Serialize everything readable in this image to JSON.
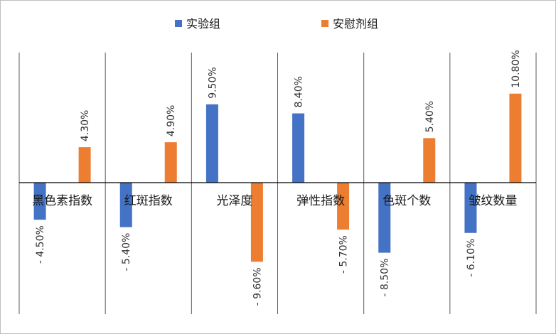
{
  "chart_data": {
    "type": "bar",
    "categories": [
      "黑色素指数",
      "红斑指数",
      "光泽度",
      "弹性指数",
      "色斑个数",
      "皱纹数量"
    ],
    "series": [
      {
        "name": "实验组",
        "color": "#4472c4",
        "values": [
          -4.5,
          -5.4,
          9.5,
          8.4,
          -8.5,
          -6.1
        ],
        "labels": [
          "- 4.50%",
          "- 5.40%",
          "9.50%",
          "8.40%",
          "- 8.50%",
          "- 6.10%"
        ]
      },
      {
        "name": "安慰剂组",
        "color": "#ed7d31",
        "values": [
          4.3,
          4.9,
          -9.6,
          -5.7,
          5.4,
          10.8
        ],
        "labels": [
          "4.30%",
          "4.90%",
          "- 9.60%",
          "- 5.70%",
          "5.40%",
          "10.80%"
        ]
      }
    ],
    "unit": "%",
    "legend_position": "top",
    "grid": "vertical category dividers"
  }
}
